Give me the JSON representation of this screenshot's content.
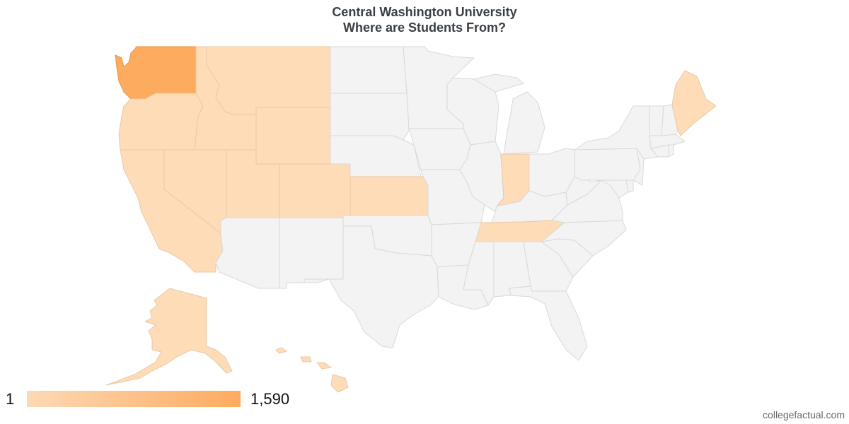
{
  "header": {
    "title_line1": "Central Washington University",
    "title_line2": "Where are Students From?"
  },
  "legend": {
    "min_label": "1",
    "max_label": "1,590",
    "min_color": "#fdd9b5",
    "max_color": "#fdab5e"
  },
  "footer": {
    "credit": "collegefactual.com"
  },
  "colors": {
    "no_data": "#f3f3f3",
    "no_data_border": "#d9d9d9",
    "light": "#fddcb7",
    "light_border": "#e9c9a6",
    "washington": "#fdab5e"
  },
  "states": [
    {
      "code": "WA",
      "level": "max"
    },
    {
      "code": "OR",
      "level": "light"
    },
    {
      "code": "CA",
      "level": "light"
    },
    {
      "code": "ID",
      "level": "light"
    },
    {
      "code": "MT",
      "level": "light"
    },
    {
      "code": "WY",
      "level": "light"
    },
    {
      "code": "NV",
      "level": "light"
    },
    {
      "code": "UT",
      "level": "light"
    },
    {
      "code": "CO",
      "level": "light"
    },
    {
      "code": "KS",
      "level": "light"
    },
    {
      "code": "IN",
      "level": "light"
    },
    {
      "code": "TN",
      "level": "light"
    },
    {
      "code": "ME",
      "level": "light"
    },
    {
      "code": "AK",
      "level": "light"
    },
    {
      "code": "HI",
      "level": "light"
    },
    {
      "code": "ND",
      "level": "none"
    },
    {
      "code": "SD",
      "level": "none"
    },
    {
      "code": "NE",
      "level": "none"
    },
    {
      "code": "MN",
      "level": "none"
    },
    {
      "code": "IA",
      "level": "none"
    },
    {
      "code": "MO",
      "level": "none"
    },
    {
      "code": "OK",
      "level": "none"
    },
    {
      "code": "TX",
      "level": "none"
    },
    {
      "code": "AZ",
      "level": "none"
    },
    {
      "code": "NM",
      "level": "none"
    },
    {
      "code": "WI",
      "level": "none"
    },
    {
      "code": "IL",
      "level": "none"
    },
    {
      "code": "MI",
      "level": "none"
    },
    {
      "code": "OH",
      "level": "none"
    },
    {
      "code": "KY",
      "level": "none"
    },
    {
      "code": "AR",
      "level": "none"
    },
    {
      "code": "LA",
      "level": "none"
    },
    {
      "code": "MS",
      "level": "none"
    },
    {
      "code": "AL",
      "level": "none"
    },
    {
      "code": "GA",
      "level": "none"
    },
    {
      "code": "FL",
      "level": "none"
    },
    {
      "code": "SC",
      "level": "none"
    },
    {
      "code": "NC",
      "level": "none"
    },
    {
      "code": "VA",
      "level": "none"
    },
    {
      "code": "WV",
      "level": "none"
    },
    {
      "code": "PA",
      "level": "none"
    },
    {
      "code": "NY",
      "level": "none"
    },
    {
      "code": "NJ",
      "level": "none"
    },
    {
      "code": "DE",
      "level": "none"
    },
    {
      "code": "MD",
      "level": "none"
    },
    {
      "code": "CT",
      "level": "none"
    },
    {
      "code": "RI",
      "level": "none"
    },
    {
      "code": "MA",
      "level": "none"
    },
    {
      "code": "VT",
      "level": "none"
    },
    {
      "code": "NH",
      "level": "none"
    }
  ]
}
